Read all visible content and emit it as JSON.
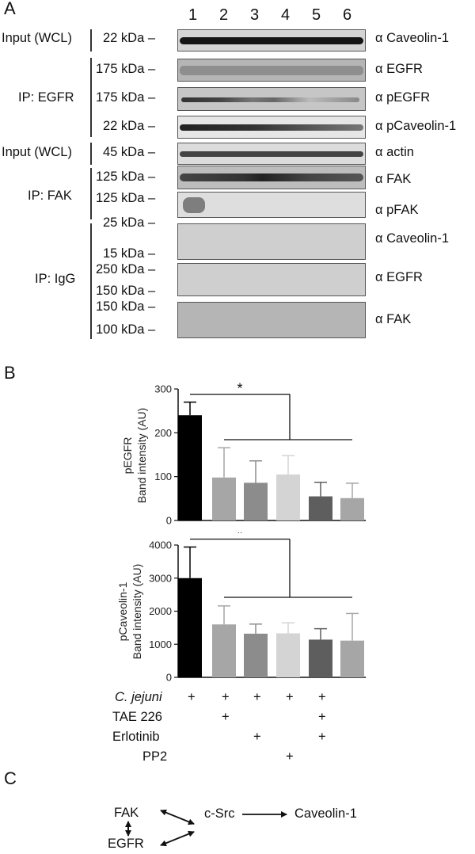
{
  "panel_a": {
    "letter": "A",
    "lanes": [
      "1",
      "2",
      "3",
      "4",
      "5",
      "6"
    ],
    "groups": [
      {
        "label": "Input (WCL)"
      },
      {
        "label": "IP: EGFR"
      },
      {
        "label": "Input (WCL)"
      },
      {
        "label": "IP: FAK"
      },
      {
        "label": "IP: IgG"
      }
    ],
    "rows": [
      {
        "mw": "22 kDa –",
        "antibody": "α Caveolin-1"
      },
      {
        "mw": "175 kDa –",
        "antibody": "α EGFR"
      },
      {
        "mw": "175 kDa –",
        "antibody": "α pEGFR"
      },
      {
        "mw": "22 kDa –",
        "antibody": "α pCaveolin-1"
      },
      {
        "mw": "45 kDa –",
        "antibody": "α actin"
      },
      {
        "mw": "125 kDa –",
        "antibody": "α FAK"
      },
      {
        "mw": "125 kDa –",
        "antibody": "α pFAK"
      },
      {
        "mw_top": "25 kDa –",
        "mw_bottom": "15 kDa –",
        "antibody": "α Caveolin-1"
      },
      {
        "mw_top": "250 kDa –",
        "mw_bottom": "150 kDa –",
        "antibody": "α EGFR"
      },
      {
        "mw_top": "150 kDa –",
        "mw_bottom": "100 kDa –",
        "antibody": "α FAK"
      }
    ]
  },
  "panel_b": {
    "letter": "B",
    "treatments": [
      {
        "name": "C. jejuni",
        "marks": [
          "+",
          "+",
          "+",
          "+",
          "+",
          ""
        ]
      },
      {
        "name": "TAE 226",
        "marks": [
          "",
          "+",
          "",
          "",
          "+",
          ""
        ]
      },
      {
        "name": "Erlotinib",
        "marks": [
          "",
          "",
          "+",
          "",
          "+",
          ""
        ]
      },
      {
        "name": "PP2",
        "marks": [
          "",
          "",
          "",
          "+",
          "",
          ""
        ]
      }
    ],
    "bar_colors": [
      "#000000",
      "#a6a6a6",
      "#8c8c8c",
      "#d4d4d4",
      "#5e5e5e",
      "#a6a6a6"
    ],
    "significance": "*"
  },
  "chart_data": [
    {
      "type": "bar",
      "ylabel": "pEGFR\nBand intensity (AU)",
      "ylim": [
        0,
        300
      ],
      "yticks": [
        "0",
        "100",
        "200",
        "300"
      ],
      "values": [
        240,
        98,
        86,
        105,
        55,
        51
      ],
      "errors": [
        30,
        68,
        50,
        43,
        32,
        34
      ],
      "colors": [
        "#000000",
        "#a6a6a6",
        "#8c8c8c",
        "#d4d4d4",
        "#5e5e5e",
        "#a6a6a6"
      ]
    },
    {
      "type": "bar",
      "ylabel": "pCaveolin-1\nBand intensity (AU)",
      "ylim": [
        0,
        4000
      ],
      "yticks": [
        "0",
        "1000",
        "2000",
        "3000",
        "4000"
      ],
      "values": [
        3000,
        1600,
        1320,
        1330,
        1140,
        1110
      ],
      "errors": [
        940,
        560,
        290,
        320,
        330,
        820
      ],
      "colors": [
        "#000000",
        "#a6a6a6",
        "#8c8c8c",
        "#d4d4d4",
        "#5e5e5e",
        "#a6a6a6"
      ]
    }
  ],
  "panel_c": {
    "letter": "C",
    "nodes": {
      "fak": "FAK",
      "egfr": "EGFR",
      "csrc": "c-Src",
      "cav": "Caveolin-1"
    }
  }
}
